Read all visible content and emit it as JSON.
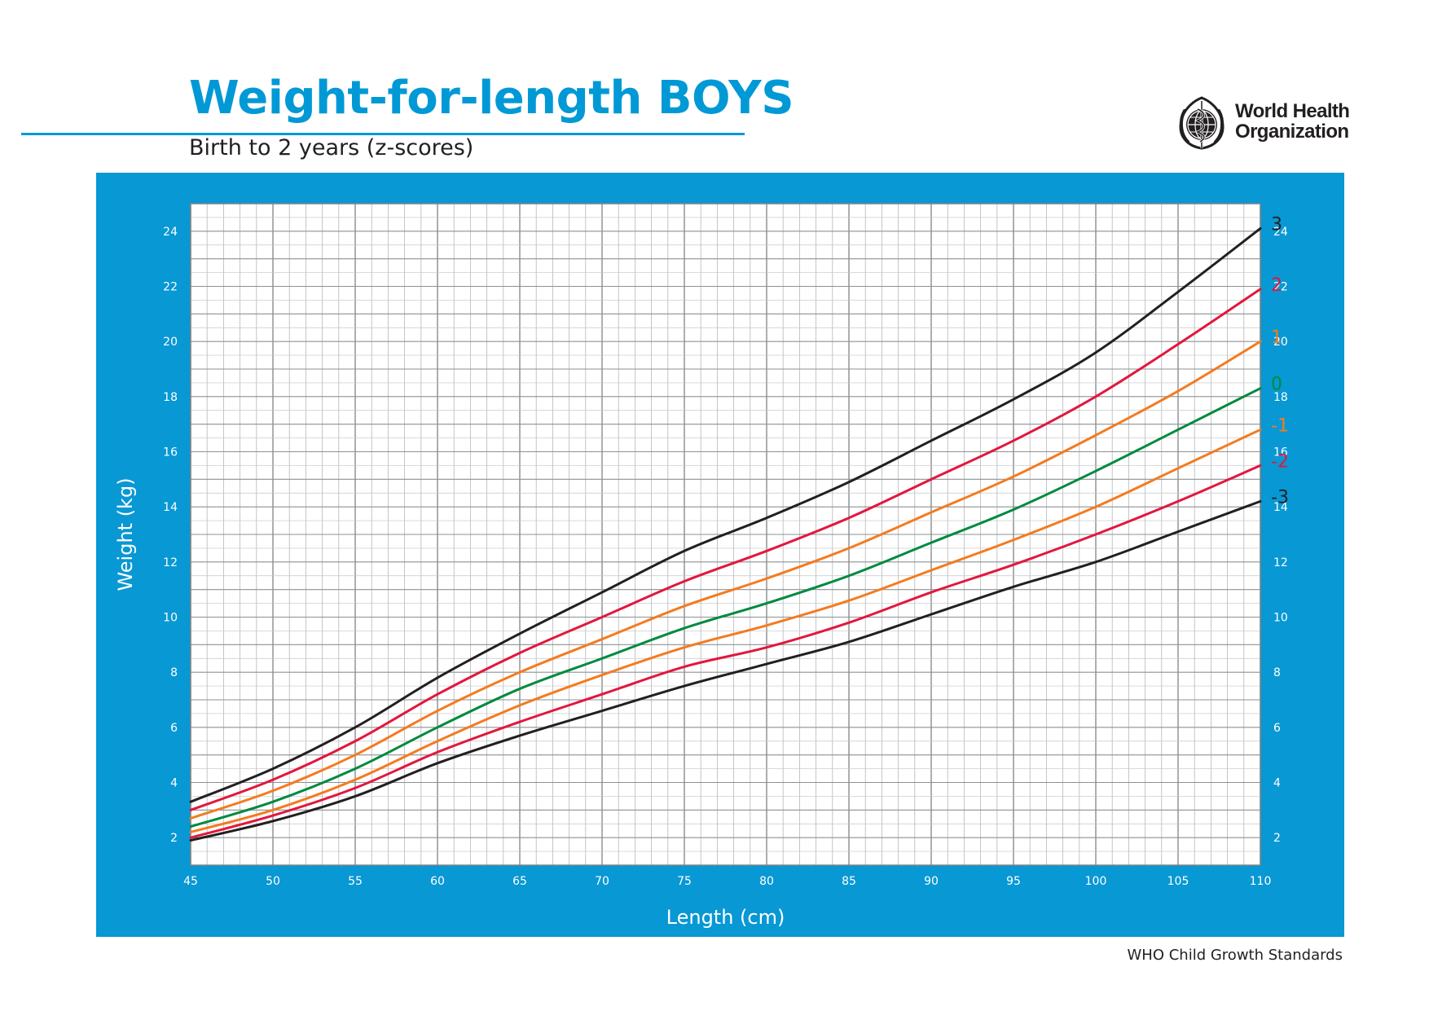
{
  "header": {
    "title": "Weight-for-length BOYS",
    "subtitle": "Birth to 2 years (z-scores)",
    "organization_line1": "World Health",
    "organization_line2": "Organization",
    "logo_icon": "who-emblem-icon"
  },
  "footer": {
    "text": "WHO Child Growth Standards"
  },
  "colors": {
    "brand_blue": "#0099d6",
    "panel_blue": "#0898d4",
    "z_black": "#231f20",
    "z_red": "#e2173d",
    "z_orange": "#f47b20",
    "z_green": "#008a3e"
  },
  "chart_data": {
    "type": "line",
    "title": "Weight-for-length BOYS",
    "subtitle": "Birth to 2 years (z-scores)",
    "xlabel": "Length (cm)",
    "ylabel": "Weight (kg)",
    "xlim": [
      45,
      110
    ],
    "ylim": [
      1,
      25
    ],
    "x_ticks": [
      45,
      50,
      55,
      60,
      65,
      70,
      75,
      80,
      85,
      90,
      95,
      100,
      105,
      110
    ],
    "y_ticks": [
      2,
      4,
      6,
      8,
      10,
      12,
      14,
      16,
      18,
      20,
      22,
      24
    ],
    "grid": true,
    "y_axis_labels_both_sides": true,
    "legend": "series labels at right end of lines",
    "x": [
      45,
      50,
      55,
      60,
      65,
      70,
      75,
      80,
      85,
      90,
      95,
      100,
      105,
      110
    ],
    "series": [
      {
        "name": "3",
        "color": "#231f20",
        "values": [
          3.3,
          4.5,
          6.0,
          7.8,
          9.4,
          10.9,
          12.4,
          13.6,
          14.9,
          16.4,
          17.9,
          19.6,
          21.8,
          24.1
        ]
      },
      {
        "name": "2",
        "color": "#e2173d",
        "values": [
          3.0,
          4.1,
          5.5,
          7.2,
          8.7,
          10.0,
          11.3,
          12.4,
          13.6,
          15.0,
          16.4,
          18.0,
          19.9,
          21.9
        ]
      },
      {
        "name": "1",
        "color": "#f47b20",
        "values": [
          2.7,
          3.7,
          5.0,
          6.6,
          8.0,
          9.2,
          10.4,
          11.4,
          12.5,
          13.8,
          15.1,
          16.6,
          18.2,
          20.0
        ]
      },
      {
        "name": "0",
        "color": "#008a3e",
        "values": [
          2.4,
          3.3,
          4.5,
          6.0,
          7.4,
          8.5,
          9.6,
          10.5,
          11.5,
          12.7,
          13.9,
          15.3,
          16.8,
          18.3
        ]
      },
      {
        "name": "-1",
        "color": "#f47b20",
        "values": [
          2.2,
          3.0,
          4.1,
          5.5,
          6.8,
          7.9,
          8.9,
          9.7,
          10.6,
          11.7,
          12.8,
          14.0,
          15.4,
          16.8
        ]
      },
      {
        "name": "-2",
        "color": "#e2173d",
        "values": [
          2.0,
          2.8,
          3.8,
          5.1,
          6.2,
          7.2,
          8.2,
          8.9,
          9.8,
          10.9,
          11.9,
          13.0,
          14.2,
          15.5
        ]
      },
      {
        "name": "-3",
        "color": "#231f20",
        "values": [
          1.9,
          2.6,
          3.5,
          4.7,
          5.7,
          6.6,
          7.5,
          8.3,
          9.1,
          10.1,
          11.1,
          12.0,
          13.1,
          14.2
        ]
      }
    ]
  }
}
